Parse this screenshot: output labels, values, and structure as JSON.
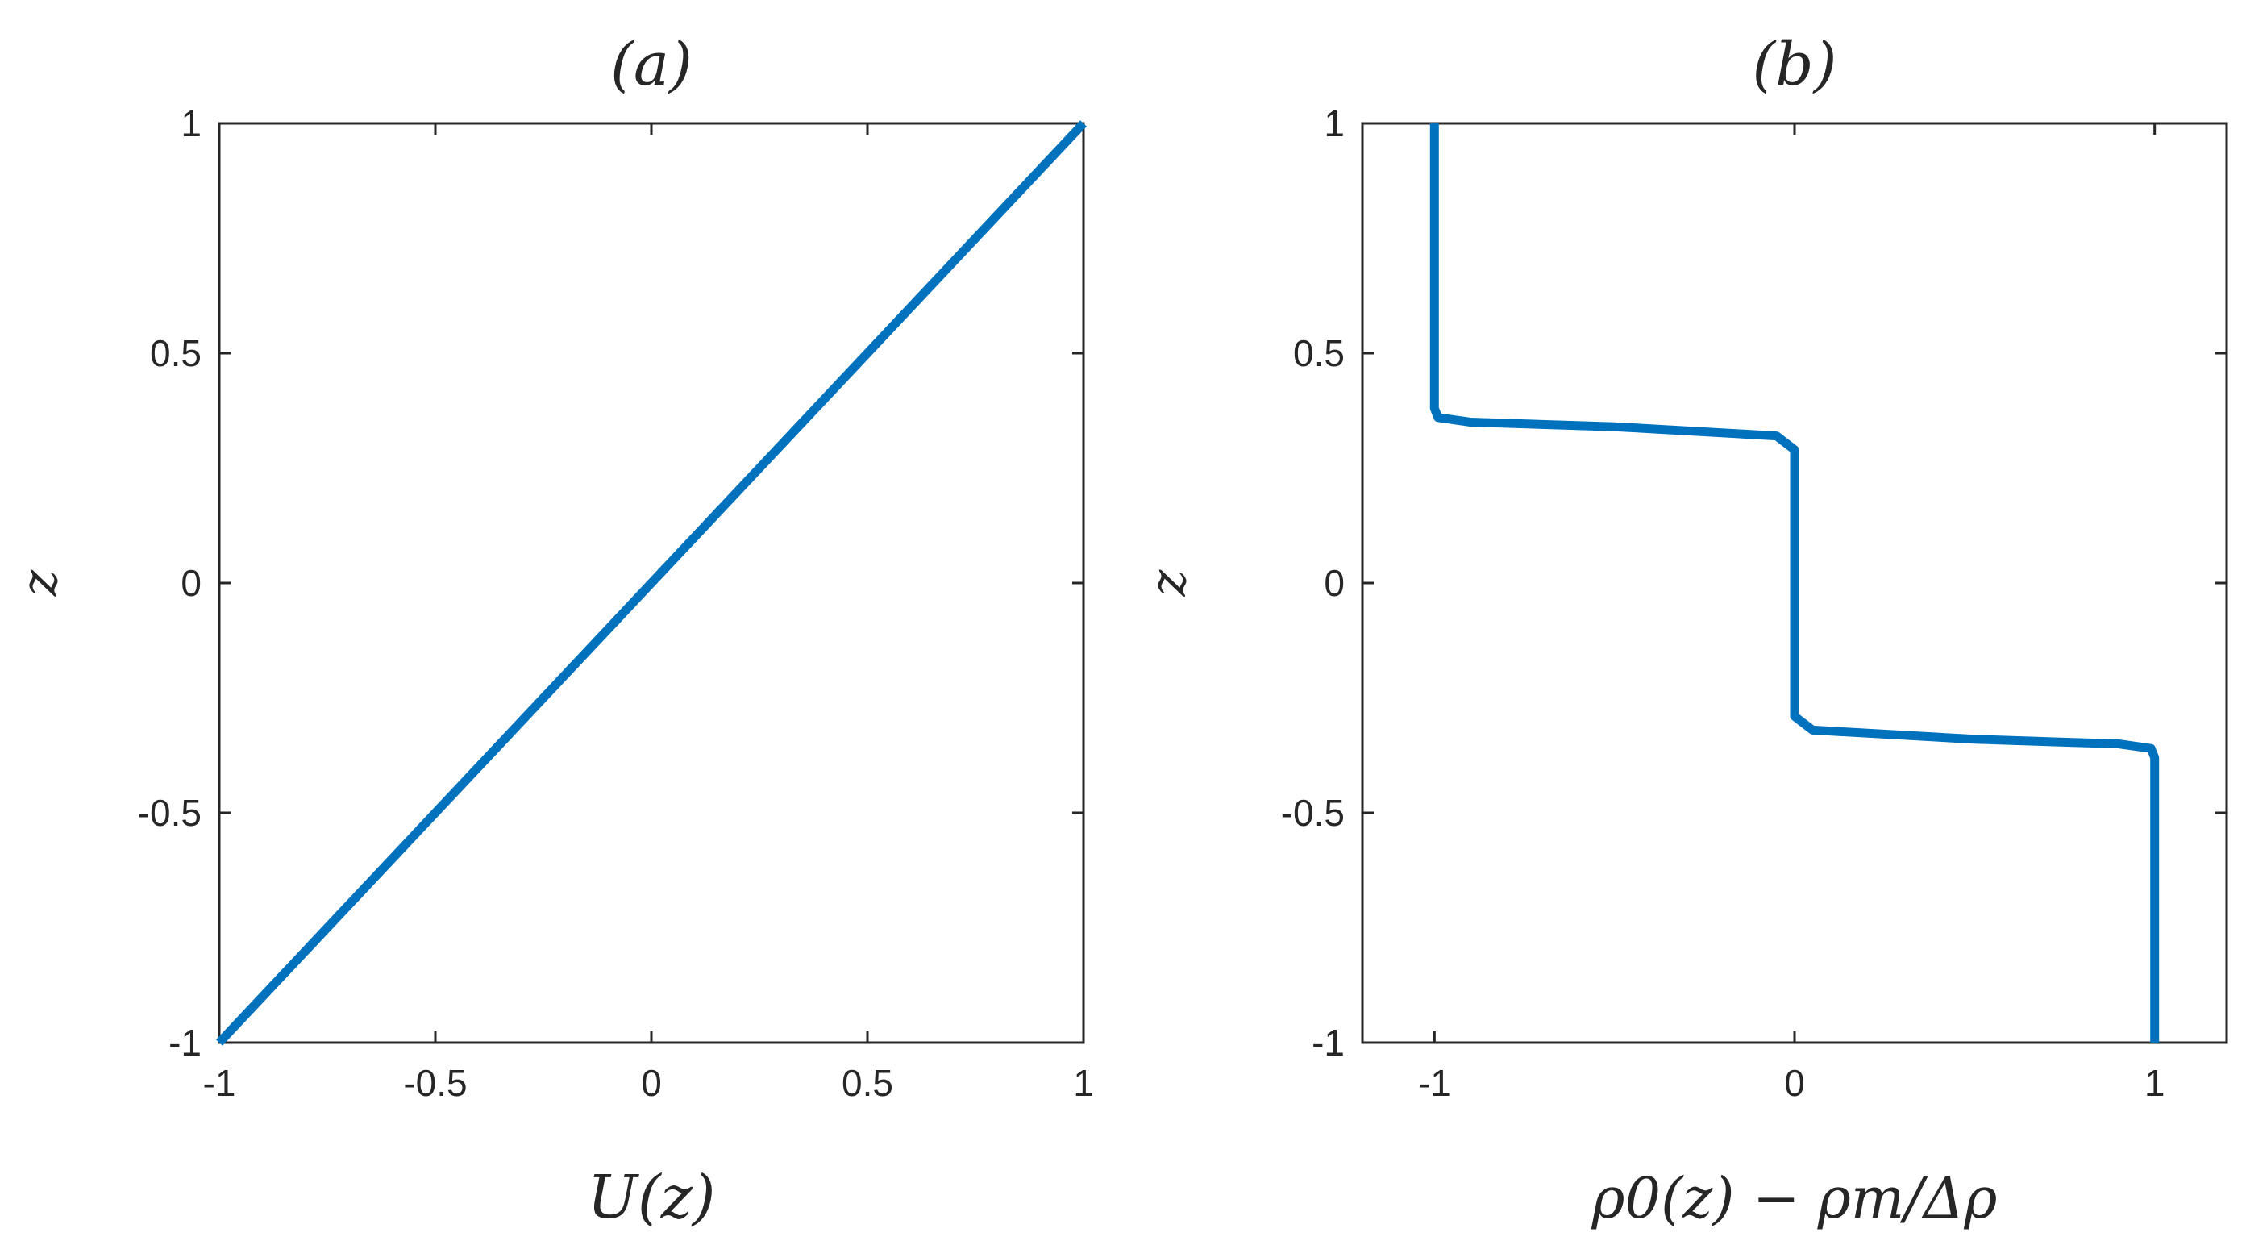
{
  "chart_data": [
    {
      "type": "line",
      "title": "(a)",
      "xlabel": "U(z)",
      "ylabel": "z",
      "xlim": [
        -1,
        1
      ],
      "ylim": [
        -1,
        1
      ],
      "xticks": [
        -1,
        -0.5,
        0,
        0.5,
        1
      ],
      "xtick_labels": [
        "-1",
        "-0.5",
        "0",
        "0.5",
        "1"
      ],
      "yticks": [
        -1,
        -0.5,
        0,
        0.5,
        1
      ],
      "ytick_labels": [
        "-1",
        "-0.5",
        "0",
        "0.5",
        "1"
      ],
      "grid": false,
      "series": [
        {
          "color": "#0072BD",
          "x": [
            -1,
            1
          ],
          "y": [
            -1,
            1
          ]
        }
      ]
    },
    {
      "type": "line",
      "title": "(b)",
      "xlabel": "ρ0(z) − ρm/Δρ",
      "ylabel": "z",
      "xlim": [
        -1.2,
        1.2
      ],
      "ylim": [
        -1,
        1
      ],
      "xticks": [
        -1,
        0,
        1
      ],
      "xtick_labels": [
        "-1",
        "0",
        "1"
      ],
      "yticks": [
        -1,
        -0.5,
        0,
        0.5,
        1
      ],
      "ytick_labels": [
        "-1",
        "-0.5",
        "0",
        "0.5",
        "1"
      ],
      "grid": false,
      "series": [
        {
          "color": "#0072BD",
          "x": [
            1,
            1,
            0.99,
            0.9,
            0.5,
            0.05,
            0,
            0,
            0,
            0,
            -0.05,
            -0.5,
            -0.9,
            -0.99,
            -1,
            -1
          ],
          "y": [
            -1,
            -0.38,
            -0.36,
            -0.35,
            -0.34,
            -0.32,
            -0.29,
            -0.1,
            0.1,
            0.29,
            0.32,
            0.34,
            0.35,
            0.36,
            0.38,
            1
          ]
        }
      ]
    }
  ]
}
